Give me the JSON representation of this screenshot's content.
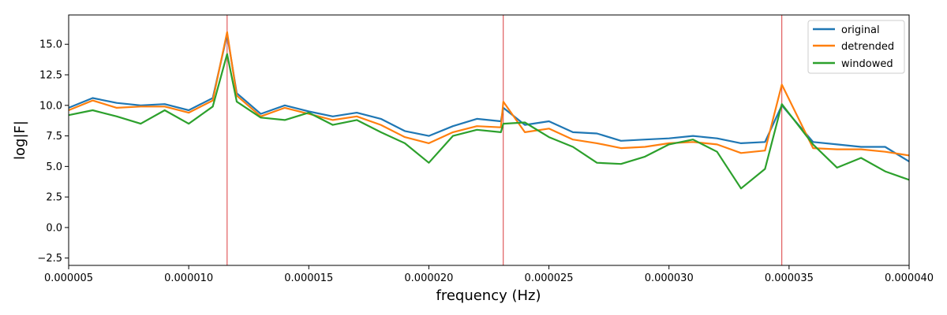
{
  "chart_data": {
    "type": "line",
    "xlabel": "frequency (Hz)",
    "ylabel": "log|F|",
    "xlim": [
      5e-06,
      4e-05
    ],
    "ylim": [
      -3.1,
      17.4
    ],
    "x_ticks": [
      5e-06,
      1e-05,
      1.5e-05,
      2e-05,
      2.5e-05,
      3e-05,
      3.5e-05,
      4e-05
    ],
    "x_tick_labels": [
      "0.000005",
      "0.000010",
      "0.000015",
      "0.000020",
      "0.000025",
      "0.000030",
      "0.000035",
      "0.000040"
    ],
    "y_ticks": [
      -2.5,
      0,
      2.5,
      5,
      7.5,
      10,
      12.5,
      15
    ],
    "y_tick_labels": [
      "−2.5",
      "0.0",
      "2.5",
      "5.0",
      "7.5",
      "10.0",
      "12.5",
      "15.0"
    ],
    "grid": false,
    "legend_position": "top-right",
    "vlines": {
      "color": "#d62728",
      "x": [
        1.16e-05,
        2.31e-05,
        3.47e-05
      ]
    },
    "series": [
      {
        "name": "original",
        "color": "#1f77b4",
        "x": [
          5e-06,
          6e-06,
          7e-06,
          8e-06,
          9e-06,
          1e-05,
          1.1e-05,
          1.16e-05,
          1.2e-05,
          1.3e-05,
          1.4e-05,
          1.5e-05,
          1.6e-05,
          1.7e-05,
          1.8e-05,
          1.9e-05,
          2e-05,
          2.1e-05,
          2.2e-05,
          2.3e-05,
          2.31e-05,
          2.4e-05,
          2.5e-05,
          2.6e-05,
          2.7e-05,
          2.8e-05,
          2.9e-05,
          3e-05,
          3.1e-05,
          3.2e-05,
          3.3e-05,
          3.4e-05,
          3.47e-05,
          3.6e-05,
          3.7e-05,
          3.8e-05,
          3.9e-05,
          4e-05
        ],
        "y": [
          9.8,
          10.6,
          10.2,
          10.0,
          10.1,
          9.6,
          10.6,
          15.8,
          11.0,
          9.3,
          10.0,
          9.5,
          9.1,
          9.4,
          8.9,
          7.9,
          7.5,
          8.3,
          8.9,
          8.7,
          9.8,
          8.4,
          8.7,
          7.8,
          7.7,
          7.1,
          7.2,
          7.3,
          7.5,
          7.3,
          6.9,
          7.0,
          10.0,
          7.0,
          6.8,
          6.6,
          6.6,
          5.4
        ]
      },
      {
        "name": "detrended",
        "color": "#ff7f0e",
        "x": [
          5e-06,
          6e-06,
          7e-06,
          8e-06,
          9e-06,
          1e-05,
          1.1e-05,
          1.16e-05,
          1.2e-05,
          1.3e-05,
          1.4e-05,
          1.5e-05,
          1.6e-05,
          1.7e-05,
          1.8e-05,
          1.9e-05,
          2e-05,
          2.1e-05,
          2.2e-05,
          2.3e-05,
          2.31e-05,
          2.4e-05,
          2.5e-05,
          2.6e-05,
          2.7e-05,
          2.8e-05,
          2.9e-05,
          3e-05,
          3.1e-05,
          3.2e-05,
          3.3e-05,
          3.4e-05,
          3.47e-05,
          3.6e-05,
          3.7e-05,
          3.8e-05,
          3.9e-05,
          4e-05
        ],
        "y": [
          9.6,
          10.4,
          9.8,
          9.9,
          9.9,
          9.4,
          10.4,
          16.0,
          10.8,
          9.1,
          9.8,
          9.3,
          8.8,
          9.1,
          8.4,
          7.4,
          6.9,
          7.8,
          8.3,
          8.2,
          10.3,
          7.8,
          8.1,
          7.2,
          6.9,
          6.5,
          6.6,
          6.9,
          7.0,
          6.8,
          6.1,
          6.3,
          11.7,
          6.5,
          6.4,
          6.4,
          6.2,
          5.9
        ]
      },
      {
        "name": "windowed",
        "color": "#2ca02c",
        "x": [
          5e-06,
          6e-06,
          7e-06,
          8e-06,
          9e-06,
          1e-05,
          1.1e-05,
          1.16e-05,
          1.2e-05,
          1.3e-05,
          1.4e-05,
          1.5e-05,
          1.6e-05,
          1.7e-05,
          1.8e-05,
          1.9e-05,
          2e-05,
          2.1e-05,
          2.2e-05,
          2.3e-05,
          2.31e-05,
          2.4e-05,
          2.5e-05,
          2.6e-05,
          2.7e-05,
          2.8e-05,
          2.9e-05,
          3e-05,
          3.1e-05,
          3.2e-05,
          3.3e-05,
          3.4e-05,
          3.47e-05,
          3.6e-05,
          3.7e-05,
          3.8e-05,
          3.9e-05,
          4e-05
        ],
        "y": [
          9.2,
          9.6,
          9.1,
          8.5,
          9.6,
          8.5,
          9.9,
          14.2,
          10.3,
          9.0,
          8.8,
          9.4,
          8.4,
          8.8,
          7.8,
          6.9,
          5.3,
          7.5,
          8.0,
          7.8,
          8.5,
          8.6,
          7.4,
          6.6,
          5.3,
          5.2,
          5.8,
          6.8,
          7.2,
          6.2,
          3.2,
          4.8,
          10.1,
          6.8,
          4.9,
          5.7,
          4.6,
          3.9
        ]
      }
    ]
  }
}
